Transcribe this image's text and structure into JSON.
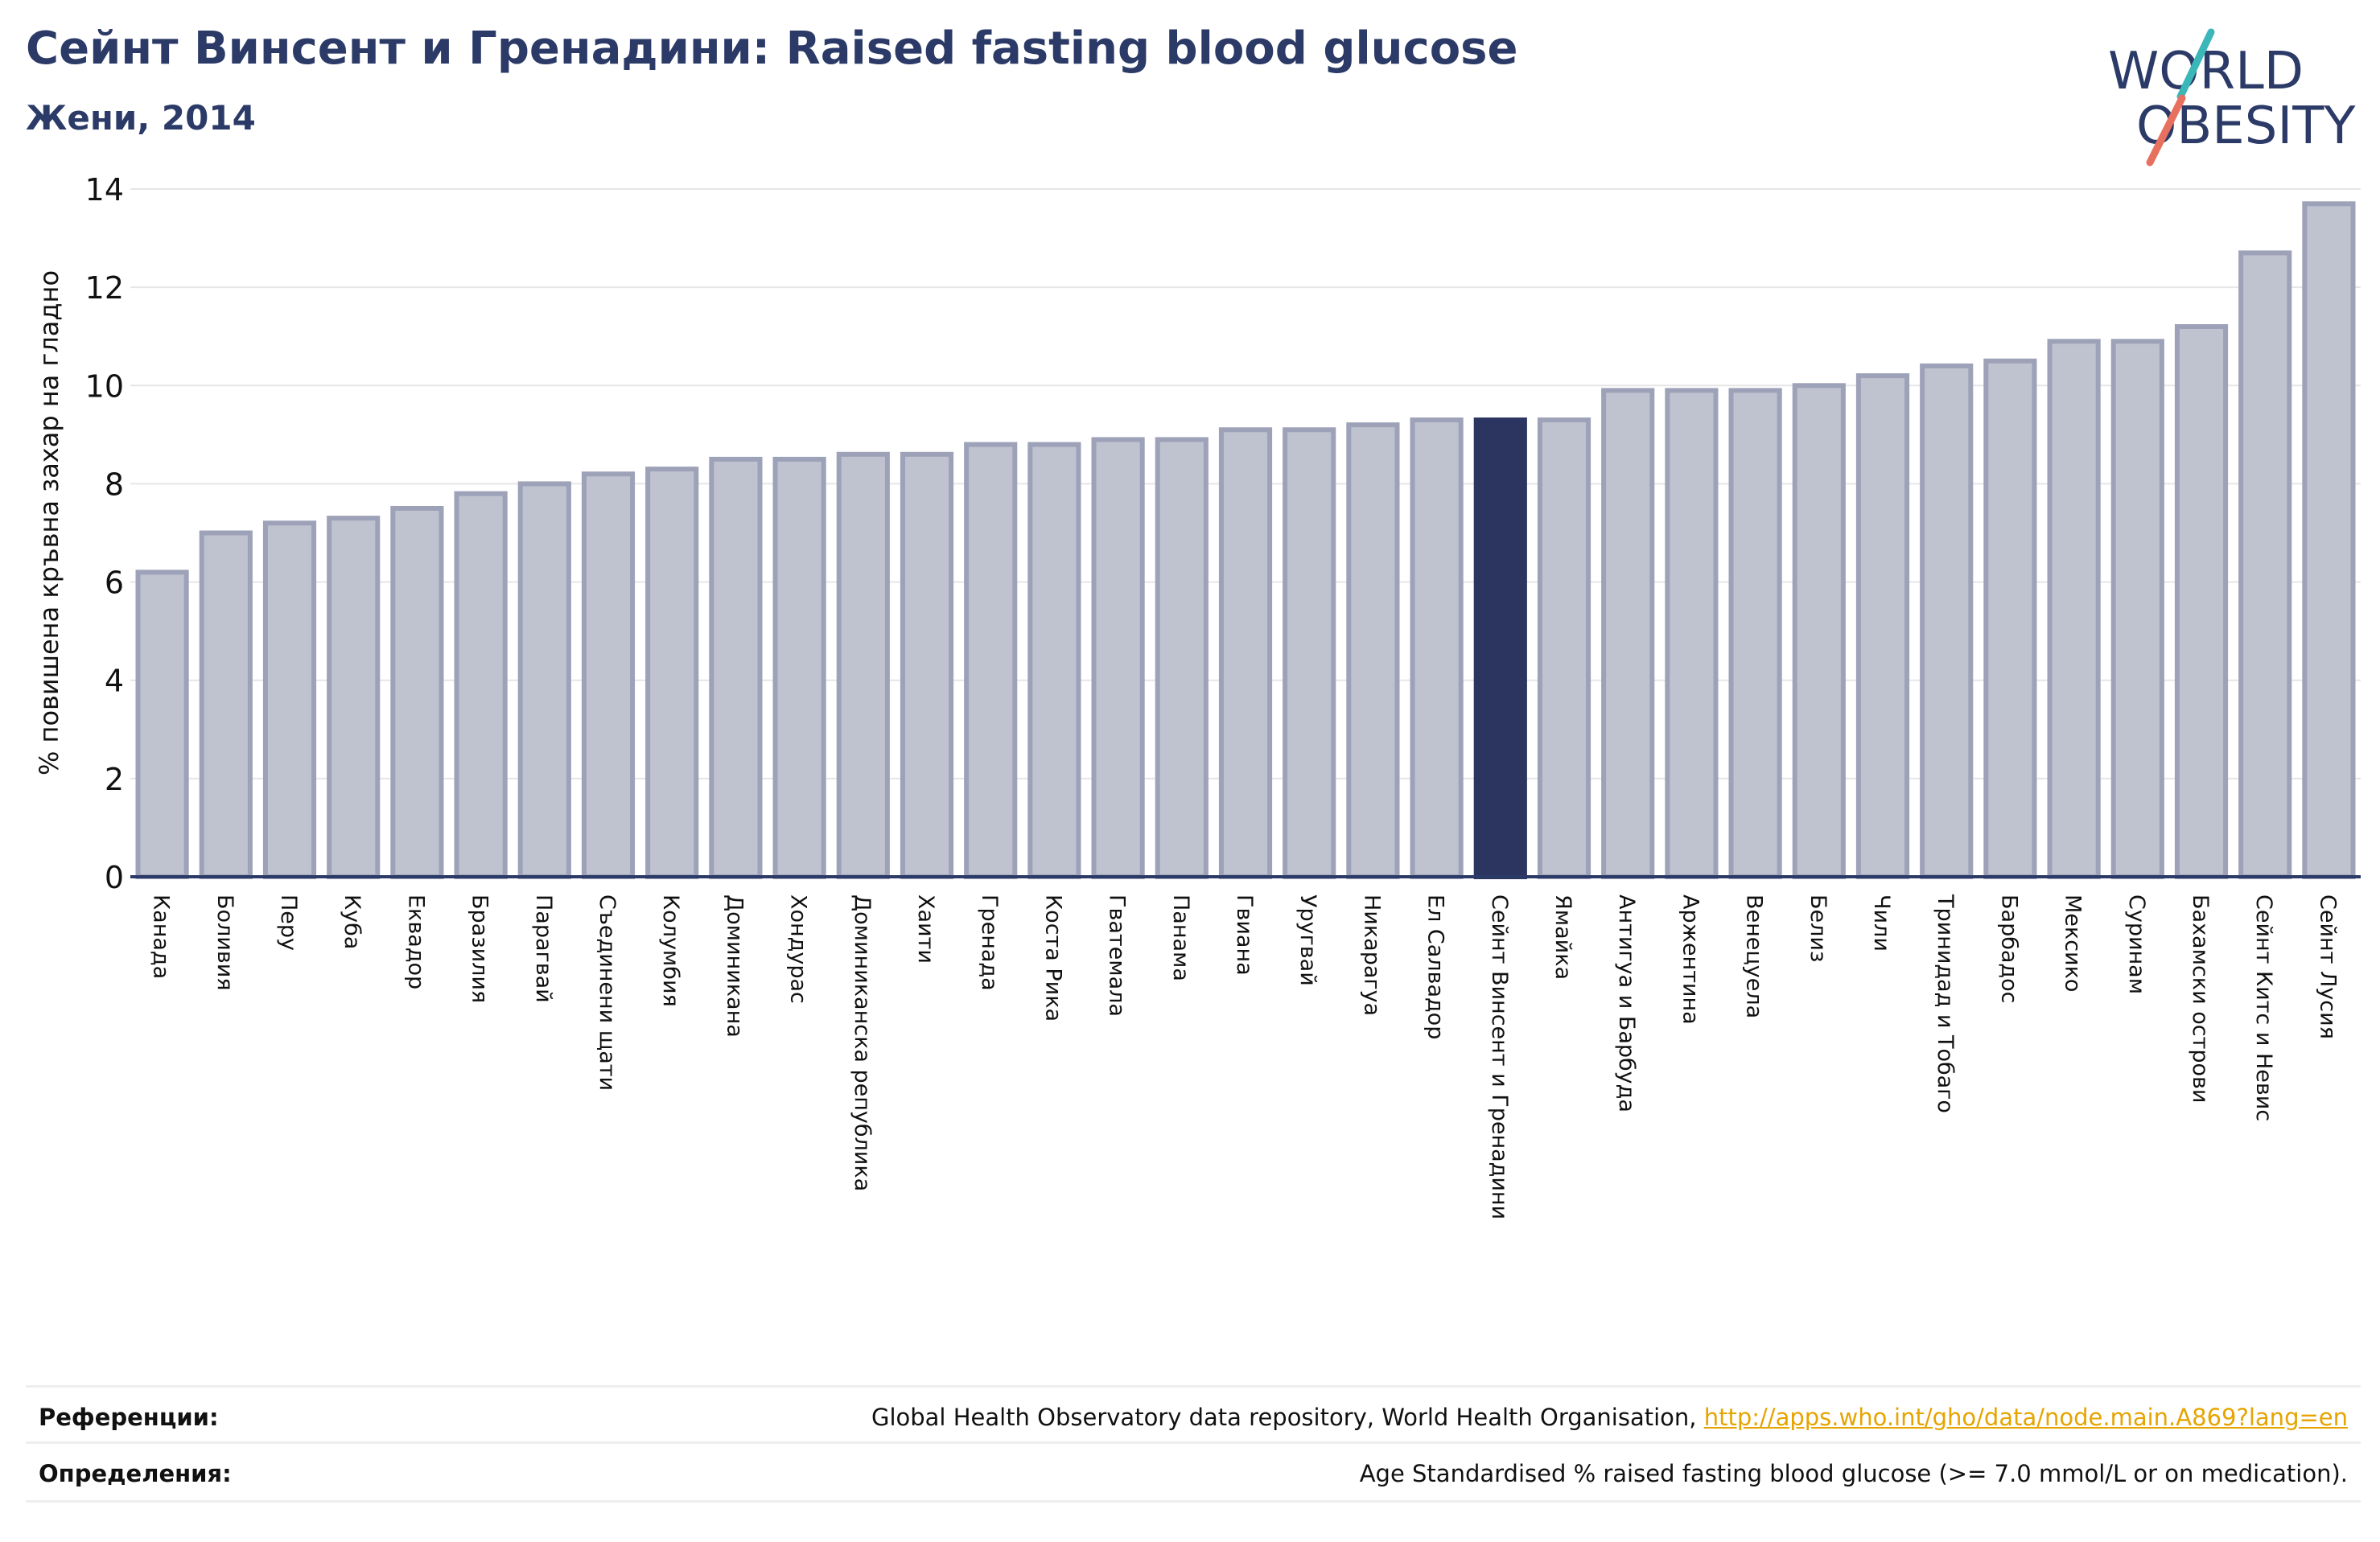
{
  "header": {
    "title": "Сейнт Винсент и Гренадини: Raised fasting blood glucose",
    "subtitle": "Жени, 2014"
  },
  "logo": {
    "line1": "WORLD",
    "line2": "OBESITY"
  },
  "chart_data": {
    "type": "bar",
    "ylabel": "% повишена кръвна захар на гладно",
    "xlabel": "",
    "ylim": [
      0,
      14
    ],
    "yticks": [
      0,
      2,
      4,
      6,
      8,
      10,
      12,
      14
    ],
    "grid": true,
    "highlight": "Сейнт Винсент и Гренадини",
    "colors": {
      "bar": "#bfc2cf",
      "bar_border": "#9da2b8",
      "highlight": "#2b3560",
      "axis": "#2b3a67"
    },
    "categories": [
      "Канада",
      "Боливия",
      "Перу",
      "Куба",
      "Еквадор",
      "Бразилия",
      "Парагвай",
      "Съединени щати",
      "Колумбия",
      "Доминикана",
      "Хондурас",
      "Доминиканска република",
      "Хаити",
      "Гренада",
      "Коста Рика",
      "Гватемала",
      "Панама",
      "Гвиана",
      "Уругвай",
      "Никарагуа",
      "Ел Салвадор",
      "Сейнт Винсент и Гренадини",
      "Ямайка",
      "Антигуа и Барбуда",
      "Аржентина",
      "Венецуела",
      "Белиз",
      "Чили",
      "Тринидад и Тобаго",
      "Барбадос",
      "Мексико",
      "Суринам",
      "Бахамски острови",
      "Сейнт Китс и Невис",
      "Сейнт Лусия"
    ],
    "values": [
      6.2,
      7.0,
      7.2,
      7.3,
      7.5,
      7.8,
      8.0,
      8.2,
      8.3,
      8.5,
      8.5,
      8.6,
      8.6,
      8.8,
      8.8,
      8.9,
      8.9,
      9.1,
      9.1,
      9.2,
      9.3,
      9.3,
      9.3,
      9.9,
      9.9,
      9.9,
      10.0,
      10.2,
      10.4,
      10.5,
      10.9,
      10.9,
      11.2,
      12.7,
      13.7
    ]
  },
  "footer": {
    "references_label": "Референции:",
    "references_text": "Global Health Observatory data repository, World Health Organisation, ",
    "references_link": "http://apps.who.int/gho/data/node.main.A869?lang=en",
    "definitions_label": "Определения:",
    "definitions_text": "Age Standardised % raised fasting blood glucose (>= 7.0 mmol/L or on medication)."
  }
}
